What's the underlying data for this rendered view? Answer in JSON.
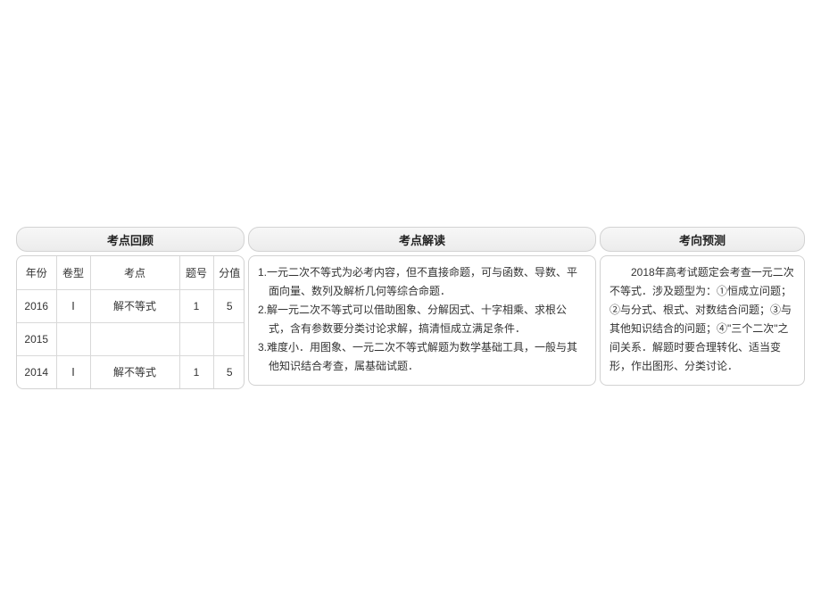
{
  "headers": {
    "review": "考点回顾",
    "interpret": "考点解读",
    "predict": "考向预测"
  },
  "review": {
    "columns": {
      "year": "年份",
      "paper": "卷型",
      "topic": "考点",
      "qno": "题号",
      "score": "分值"
    },
    "rows": [
      {
        "year": "2016",
        "paper": "Ⅰ",
        "topic": "解不等式",
        "qno": "1",
        "score": "5"
      },
      {
        "year": "2015",
        "paper": "",
        "topic": "",
        "qno": "",
        "score": ""
      },
      {
        "year": "2014",
        "paper": "Ⅰ",
        "topic": "解不等式",
        "qno": "1",
        "score": "5"
      }
    ],
    "col_widths": {
      "year": "44px",
      "paper": "38px",
      "topic": "100px",
      "qno": "38px",
      "score": "36px"
    }
  },
  "interpret": {
    "items": [
      "1.一元二次不等式为必考内容，但不直接命题，可与函数、导数、平面向量、数列及解析几何等综合命题．",
      "2.解一元二次不等式可以借助图象、分解因式、十字相乘、求根公式，含有参数要分类讨论求解，搞清恒成立满足条件．",
      "3.难度小．用图象、一元二次不等式解题为数学基础工具，一般与其他知识结合考查，属基础试题．"
    ]
  },
  "predict": {
    "text": "2018年高考试题定会考查一元二次不等式．涉及题型为：①恒成立问题；②与分式、根式、对数结合问题；③与其他知识结合的问题；④\"三个二次\"之间关系．解题时要合理转化、适当变形，作出图形、分类讨论．"
  },
  "colors": {
    "border": "#d2d2d2",
    "grid": "#d9d9d9",
    "header_bg_top": "#f7f7f7",
    "header_bg_bot": "#ececec",
    "text": "#333333",
    "page_bg": "#ffffff"
  }
}
